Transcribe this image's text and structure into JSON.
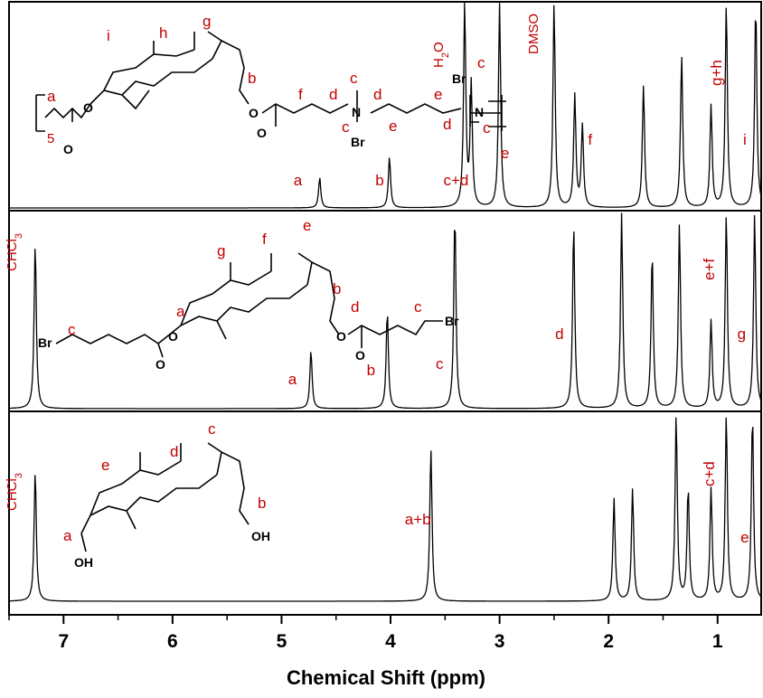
{
  "chart_data": {
    "type": "line",
    "xlabel": "Chemical Shift (ppm)",
    "xlim": [
      7.5,
      0.6
    ],
    "x_ticks": [
      "7",
      "6",
      "5",
      "4",
      "3",
      "2",
      "1"
    ],
    "colors": {
      "trace": "#000000",
      "labels": "#c00000",
      "frame": "#000000"
    },
    "panels": [
      {
        "name": "top",
        "peaks": [
          {
            "x": 4.65,
            "y": 0.15
          },
          {
            "x": 4.01,
            "y": 0.25
          },
          {
            "x": 3.32,
            "y": 1.0
          },
          {
            "x": 3.26,
            "y": 0.6
          },
          {
            "x": 3.0,
            "y": 1.0
          },
          {
            "x": 2.5,
            "y": 1.0
          },
          {
            "x": 2.31,
            "y": 0.55
          },
          {
            "x": 2.24,
            "y": 0.4
          },
          {
            "x": 1.68,
            "y": 0.6
          },
          {
            "x": 1.33,
            "y": 0.75
          },
          {
            "x": 1.06,
            "y": 0.5
          },
          {
            "x": 0.92,
            "y": 1.0
          },
          {
            "x": 0.65,
            "y": 1.0
          }
        ],
        "labels": [
          {
            "text": "a",
            "x": 4.85
          },
          {
            "text": "b",
            "x": 4.1
          },
          {
            "text": "c+d",
            "x": 3.4
          },
          {
            "text": "e",
            "x": 2.95
          },
          {
            "text": "f",
            "x": 2.17
          },
          {
            "text": "i",
            "x": 0.75
          }
        ],
        "vertical_labels": [
          {
            "text": "DMSO",
            "x": 2.53
          },
          {
            "text": "g+h",
            "x": 0.97
          }
        ],
        "formula_labels": [
          "H",
          "2",
          "O"
        ],
        "structure_letters": [
          "i",
          "h",
          "g",
          "b",
          "a",
          "f",
          "d",
          "c",
          "c",
          "d",
          "e",
          "e",
          "d",
          "c",
          "c",
          "5"
        ],
        "structure_atoms": [
          "O",
          "O",
          "O",
          "O",
          "N",
          "Br",
          "Br",
          "N"
        ]
      },
      {
        "name": "middle",
        "peaks": [
          {
            "x": 7.26,
            "y": 0.85
          },
          {
            "x": 4.73,
            "y": 0.3
          },
          {
            "x": 4.03,
            "y": 0.5
          },
          {
            "x": 3.41,
            "y": 1.0
          },
          {
            "x": 2.32,
            "y": 0.95
          },
          {
            "x": 1.88,
            "y": 1.0
          },
          {
            "x": 1.6,
            "y": 0.8
          },
          {
            "x": 1.35,
            "y": 0.95
          },
          {
            "x": 1.06,
            "y": 0.45
          },
          {
            "x": 0.92,
            "y": 1.0
          },
          {
            "x": 0.66,
            "y": 1.0
          }
        ],
        "labels": [
          {
            "text": "a",
            "x": 4.9
          },
          {
            "text": "b",
            "x": 4.18
          },
          {
            "text": "c",
            "x": 3.55
          },
          {
            "text": "d",
            "x": 2.45
          },
          {
            "text": "g",
            "x": 0.78
          }
        ],
        "vertical_labels": [
          {
            "text": "e+f",
            "x": 0.99
          }
        ],
        "formula_labels": [
          "CHCl",
          "3"
        ],
        "structure_letters": [
          "c",
          "a",
          "g",
          "f",
          "e",
          "b",
          "d",
          "c"
        ],
        "structure_atoms": [
          "Br",
          "O",
          "O",
          "O",
          "O",
          "Br"
        ]
      },
      {
        "name": "bottom",
        "peaks": [
          {
            "x": 7.26,
            "y": 0.7
          },
          {
            "x": 3.63,
            "y": 0.82
          },
          {
            "x": 1.95,
            "y": 0.55
          },
          {
            "x": 1.78,
            "y": 0.6
          },
          {
            "x": 1.38,
            "y": 1.0
          },
          {
            "x": 1.27,
            "y": 0.6
          },
          {
            "x": 1.06,
            "y": 0.6
          },
          {
            "x": 0.92,
            "y": 1.0
          },
          {
            "x": 0.68,
            "y": 1.0
          }
        ],
        "labels": [
          {
            "text": "a+b",
            "x": 3.75
          },
          {
            "text": "e",
            "x": 0.75
          }
        ],
        "vertical_labels": [
          {
            "text": "c+d",
            "x": 1.06
          }
        ],
        "formula_labels": [
          "CHCl",
          "3"
        ],
        "structure_letters": [
          "e",
          "d",
          "c",
          "a",
          "b"
        ],
        "structure_atoms": [
          "OH",
          "OH"
        ]
      }
    ]
  }
}
